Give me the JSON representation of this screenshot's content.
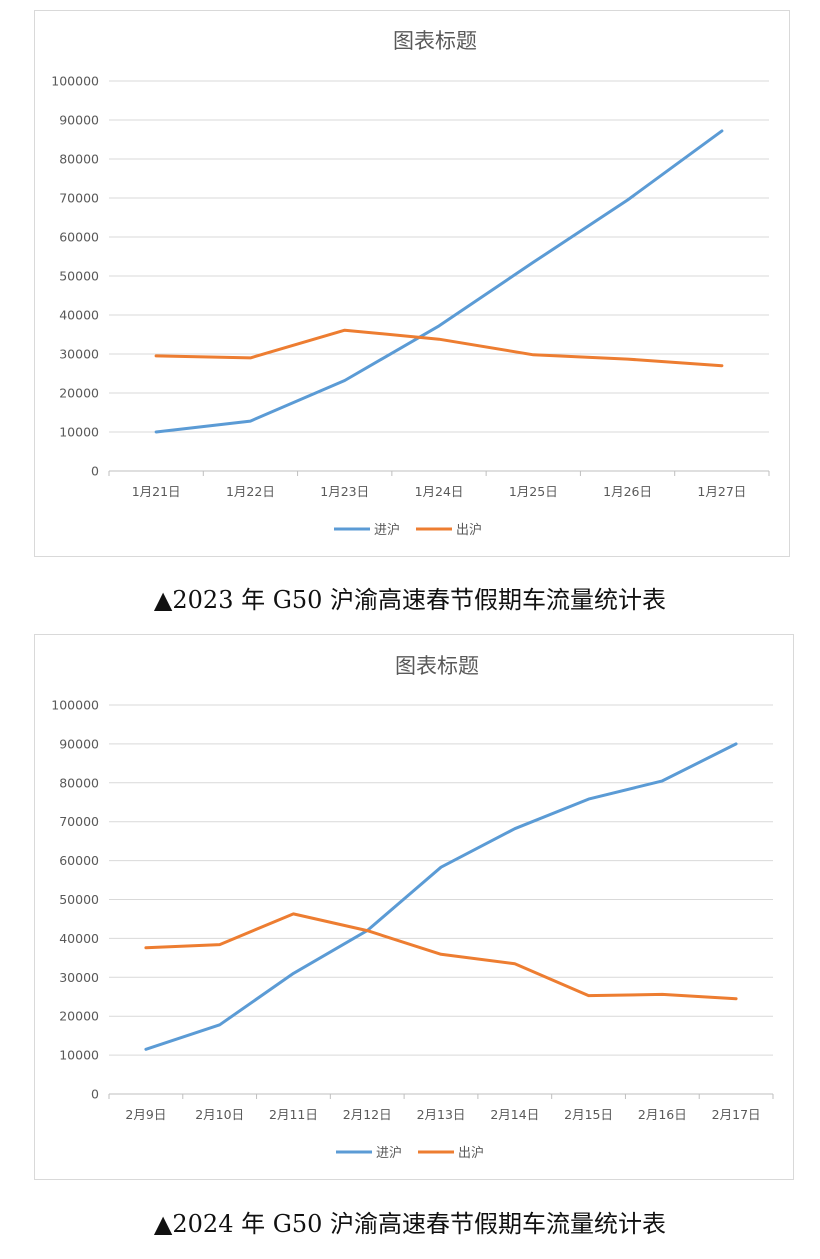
{
  "chart_data": [
    {
      "type": "line",
      "title": "图表标题",
      "categories": [
        "1月21日",
        "1月22日",
        "1月23日",
        "1月24日",
        "1月25日",
        "1月26日",
        "1月27日"
      ],
      "series": [
        {
          "name": "进沪",
          "color": "#5b9bd5",
          "values": [
            10000,
            12800,
            23200,
            37200,
            53500,
            69500,
            87200
          ]
        },
        {
          "name": "出沪",
          "color": "#ed7d31",
          "values": [
            29500,
            29000,
            36100,
            33800,
            29800,
            28700,
            27000
          ]
        }
      ],
      "ylim": [
        0,
        100000
      ],
      "yticks": [
        0,
        10000,
        20000,
        30000,
        40000,
        50000,
        60000,
        70000,
        80000,
        90000,
        100000
      ],
      "grid": true,
      "legend": "bottom"
    },
    {
      "type": "line",
      "title": "图表标题",
      "categories": [
        "2月9日",
        "2月10日",
        "2月11日",
        "2月12日",
        "2月13日",
        "2月14日",
        "2月15日",
        "2月16日",
        "2月17日"
      ],
      "series": [
        {
          "name": "进沪",
          "color": "#5b9bd5",
          "values": [
            11500,
            17800,
            31000,
            42000,
            58300,
            68200,
            75800,
            80500,
            90000
          ]
        },
        {
          "name": "出沪",
          "color": "#ed7d31",
          "values": [
            37600,
            38400,
            46300,
            42000,
            35900,
            33500,
            25300,
            25600,
            24500
          ]
        }
      ],
      "ylim": [
        0,
        100000
      ],
      "yticks": [
        0,
        10000,
        20000,
        30000,
        40000,
        50000,
        60000,
        70000,
        80000,
        90000,
        100000
      ],
      "grid": true,
      "legend": "bottom"
    }
  ],
  "captions": [
    "▲2023 年 G50 沪渝高速春节假期车流量统计表",
    "▲2024 年 G50 沪渝高速春节假期车流量统计表"
  ]
}
